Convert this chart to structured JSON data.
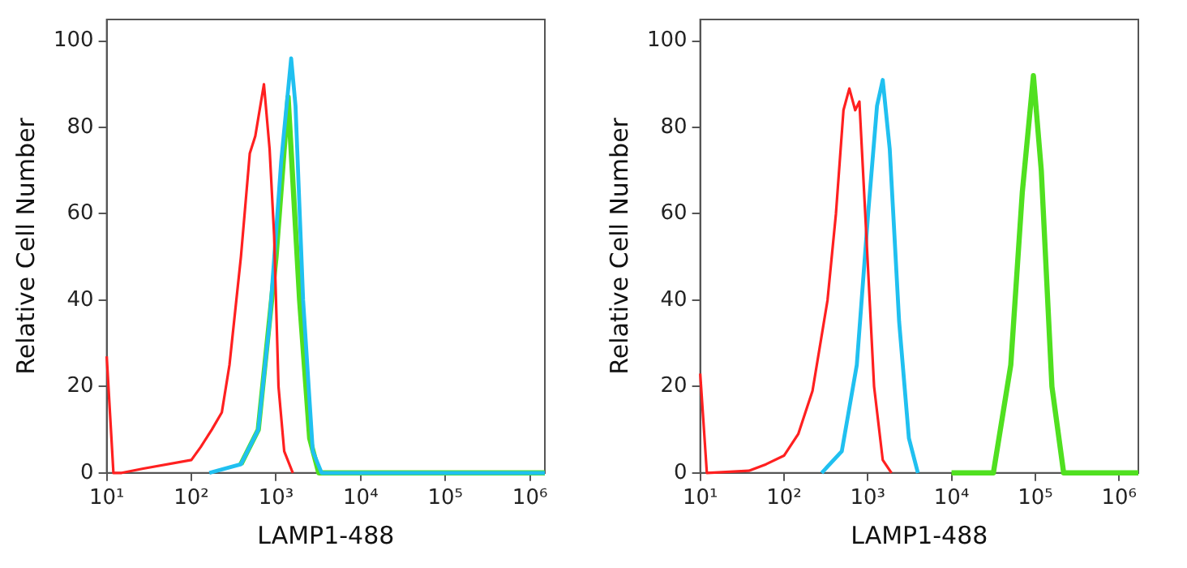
{
  "chart_data": [
    {
      "type": "line",
      "xlabel": "LAMP1-488",
      "ylabel": "Relative Cell Number",
      "log": "x",
      "grid": false,
      "legend": false,
      "marker": "none",
      "line_style": "solid",
      "xlim": [
        10,
        1500000
      ],
      "ylim": [
        0,
        105
      ],
      "xticks": [
        {
          "value": 10,
          "label": "10¹"
        },
        {
          "value": 100,
          "label": "10²"
        },
        {
          "value": 1000,
          "label": "10³"
        },
        {
          "value": 10000,
          "label": "10⁴"
        },
        {
          "value": 100000,
          "label": "10⁵"
        },
        {
          "value": 1000000,
          "label": "10⁶"
        }
      ],
      "yticks": [
        0,
        20,
        40,
        60,
        80,
        100
      ],
      "series": [
        {
          "color": "#ff2020",
          "x": [
            10,
            12,
            15,
            27,
            100,
            129,
            174,
            229,
            282,
            385,
            490,
            569,
            720,
            840,
            950,
            1070,
            1250,
            1580
          ],
          "values": [
            27,
            0,
            0,
            1,
            3,
            6,
            10,
            14,
            25,
            50,
            74,
            78,
            90,
            75,
            55,
            20,
            5,
            0
          ]
        },
        {
          "color": "#20c0f0",
          "x": [
            163,
            385,
            617,
            840,
            1150,
            1510,
            1700,
            2090,
            2720,
            3460,
            1500000
          ],
          "values": [
            0,
            2,
            10,
            35,
            72,
            96,
            85,
            40,
            5,
            0,
            0
          ]
        },
        {
          "color": "#50e020",
          "x": [
            385,
            617,
            1000,
            1390,
            1900,
            2500,
            3200,
            1500000
          ],
          "values": [
            2,
            10,
            50,
            87,
            40,
            8,
            0,
            0
          ]
        }
      ]
    },
    {
      "type": "line",
      "xlabel": "LAMP1-488",
      "ylabel": "Relative Cell Number",
      "log": "x",
      "grid": false,
      "legend": false,
      "marker": "none",
      "line_style": "solid",
      "xlim": [
        10,
        1700000
      ],
      "ylim": [
        0,
        105
      ],
      "xticks": [
        {
          "value": 10,
          "label": "10¹"
        },
        {
          "value": 100,
          "label": "10²"
        },
        {
          "value": 1000,
          "label": "10³"
        },
        {
          "value": 10000,
          "label": "10⁴"
        },
        {
          "value": 100000,
          "label": "10⁵"
        },
        {
          "value": 1000000,
          "label": "10⁶"
        }
      ],
      "yticks": [
        0,
        20,
        40,
        60,
        80,
        100
      ],
      "series": [
        {
          "color": "#ff2020",
          "x": [
            10,
            12,
            38,
            61,
            100,
            148,
            219,
            331,
            417,
            513,
            603,
            708,
            795,
            933,
            1190,
            1510,
            1920
          ],
          "values": [
            23,
            0,
            0.5,
            2,
            4,
            9,
            19,
            40,
            60,
            84,
            89,
            84,
            86,
            60,
            20,
            3,
            0
          ]
        },
        {
          "color": "#20c0f0",
          "x": [
            282,
            490,
            740,
            1010,
            1290,
            1510,
            1830,
            2370,
            3100,
            3970
          ],
          "values": [
            0,
            5,
            25,
            60,
            85,
            91,
            75,
            35,
            8,
            0
          ]
        },
        {
          "color": "#50e020",
          "x": [
            10000,
            31600,
            51000,
            70000,
            95000,
            118000,
            158000,
            218000,
            1700000
          ],
          "values": [
            0,
            0,
            25,
            65,
            92,
            70,
            20,
            0,
            0
          ]
        }
      ]
    }
  ]
}
